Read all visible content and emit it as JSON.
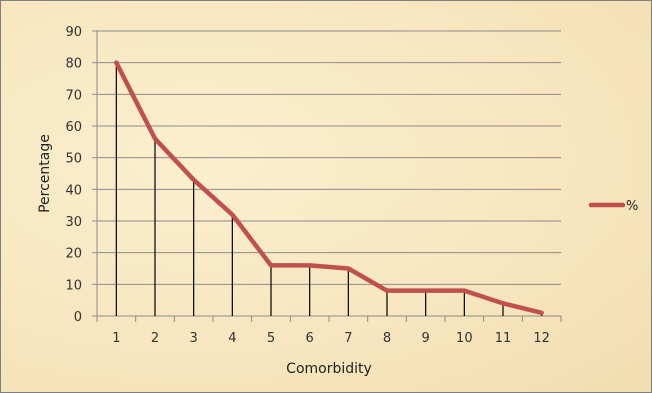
{
  "chart_data": {
    "type": "line",
    "title": "",
    "xlabel": "Comorbidity",
    "ylabel": "Percentage",
    "categories": [
      "1",
      "2",
      "3",
      "4",
      "5",
      "6",
      "7",
      "8",
      "9",
      "10",
      "11",
      "12"
    ],
    "series": [
      {
        "name": "%",
        "values": [
          80,
          56,
          43,
          32,
          16,
          16,
          15,
          8,
          8,
          8,
          4,
          1
        ],
        "color": "#c0504d"
      }
    ],
    "drop_lines": true,
    "ylim": [
      0,
      90
    ],
    "yticks": [
      0,
      10,
      20,
      30,
      40,
      50,
      60,
      70,
      80,
      90
    ],
    "grid": true,
    "legend": "right"
  }
}
